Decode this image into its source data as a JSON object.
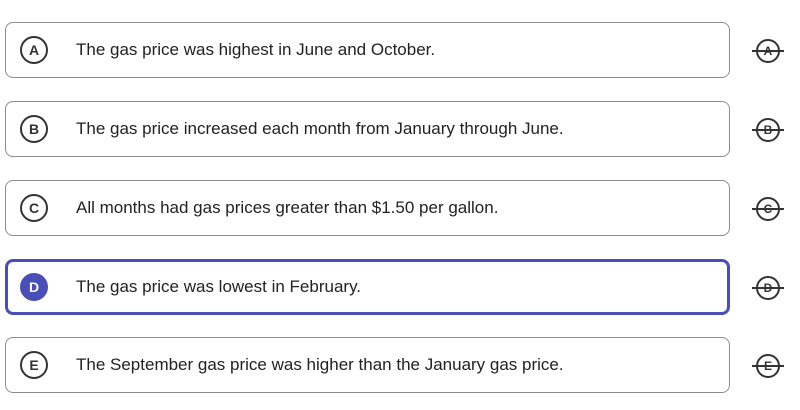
{
  "options": [
    {
      "letter": "A",
      "text": "The gas price was highest in June and October.",
      "selected": false
    },
    {
      "letter": "B",
      "text": "The gas price increased each month from January through June.",
      "selected": false
    },
    {
      "letter": "C",
      "text": "All months had gas prices greater than $1.50 per gallon.",
      "selected": false
    },
    {
      "letter": "D",
      "text": "The gas price was lowest in February.",
      "selected": true
    },
    {
      "letter": "E",
      "text": "The September gas price was higher than the January gas price.",
      "selected": false
    }
  ],
  "colors": {
    "selected_accent": "#4a4fb8",
    "border": "#8c8c8c",
    "text": "#222222"
  }
}
